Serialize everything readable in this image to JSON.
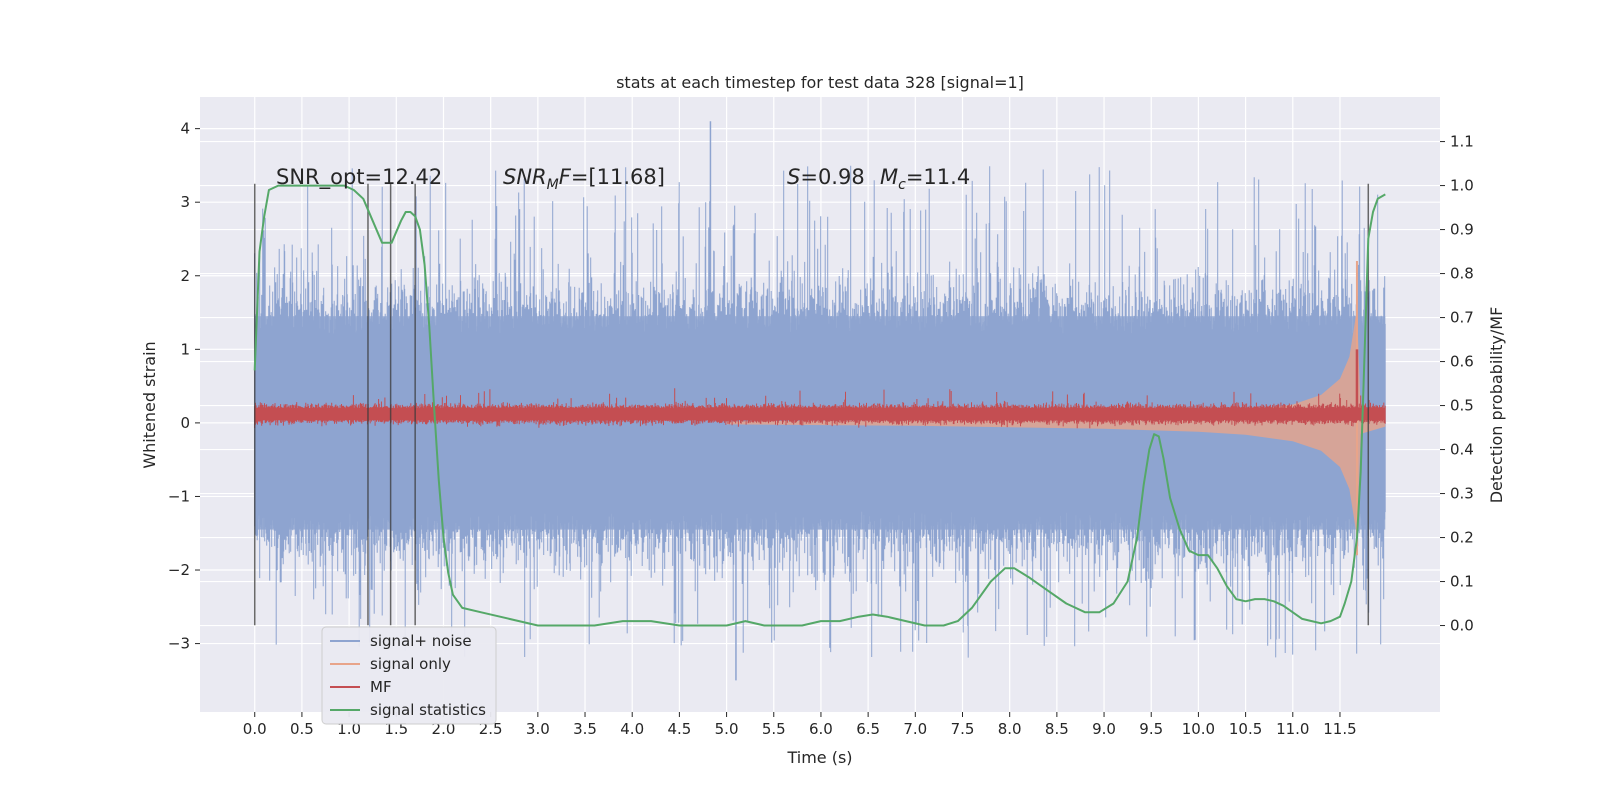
{
  "chart_data": {
    "type": "line",
    "title": "stats at each timestep for test data 328 [signal=1]",
    "xlabel": "Time (s)",
    "ylabel_left": "Whitened strain",
    "ylabel_right": "Detection probability/MF",
    "xlim": [
      -0.58,
      12.56
    ],
    "ylim_left": [
      -3.93,
      4.43
    ],
    "ylim_right": [
      -0.1965,
      1.2013
    ],
    "x_ticks": [
      0.0,
      0.5,
      1.0,
      1.5,
      2.0,
      2.5,
      3.0,
      3.5,
      4.0,
      4.5,
      5.0,
      5.5,
      6.0,
      6.5,
      7.0,
      7.5,
      8.0,
      8.5,
      9.0,
      9.5,
      10.0,
      10.5,
      11.0,
      11.5
    ],
    "x_tick_labels": [
      "0.0",
      "0.5",
      "1.0",
      "1.5",
      "2.0",
      "2.5",
      "3.0",
      "3.5",
      "4.0",
      "4.5",
      "5.0",
      "5.5",
      "6.0",
      "6.5",
      "7.0",
      "7.5",
      "8.0",
      "8.5",
      "9.0",
      "9.5",
      "10.0",
      "10.5",
      "11.0",
      "11.5"
    ],
    "y_left_ticks": [
      -3,
      -2,
      -1,
      0,
      1,
      2,
      3,
      4
    ],
    "y_left_tick_labels": [
      "−3",
      "−2",
      "−1",
      "0",
      "1",
      "2",
      "3",
      "4"
    ],
    "y_right_ticks": [
      0.0,
      0.1,
      0.2,
      0.3,
      0.4,
      0.5,
      0.6,
      0.7,
      0.8,
      0.9,
      1.0,
      1.1
    ],
    "y_right_tick_labels": [
      "0.0",
      "0.1",
      "0.2",
      "0.3",
      "0.4",
      "0.5",
      "0.6",
      "0.7",
      "0.8",
      "0.9",
      "1.0",
      "1.1"
    ],
    "grid": true,
    "legend_position": "lower-left",
    "annotations": {
      "snr_opt": "SNR_opt=12.42",
      "snr_mf_sym": "SNR",
      "snr_mf_sub": "M",
      "snr_mf_rest": "F=[11.68]",
      "s_sym": "S",
      "s_value": "=0.98",
      "mc_sym": "M",
      "mc_sub": "c",
      "mc_value": "=11.4"
    },
    "series": [
      {
        "name": "signal+ noise",
        "color": "#8ea4d0",
        "axis": "left",
        "style": "noise",
        "x_range": [
          0.0,
          11.98
        ],
        "band_sigma": 1.0,
        "max_spike": 4.1,
        "min_spike": -3.5
      },
      {
        "name": "signal only",
        "color": "#e8a48a",
        "axis": "left",
        "style": "chirp",
        "x_range": [
          5.0,
          11.98
        ],
        "envelope": {
          "x": [
            5.0,
            7.0,
            9.0,
            10.0,
            10.5,
            11.0,
            11.3,
            11.5,
            11.6,
            11.68,
            11.72,
            11.98
          ],
          "y": [
            0.02,
            0.04,
            0.08,
            0.12,
            0.16,
            0.25,
            0.38,
            0.6,
            0.9,
            1.55,
            0.15,
            0.05
          ]
        }
      },
      {
        "name": "MF",
        "color": "#c44e52",
        "axis": "left",
        "style": "mf",
        "x_range": [
          0.0,
          11.98
        ],
        "baseline": 0.12,
        "peak_x": 11.68,
        "peak_y": 1.0
      },
      {
        "name": "signal statistics",
        "color": "#55a868",
        "axis": "right",
        "style": "line",
        "x": [
          0.0,
          0.05,
          0.1,
          0.15,
          0.25,
          0.4,
          0.6,
          0.8,
          0.95,
          1.05,
          1.15,
          1.25,
          1.35,
          1.45,
          1.55,
          1.6,
          1.65,
          1.7,
          1.75,
          1.8,
          1.85,
          1.9,
          1.95,
          2.0,
          2.05,
          2.1,
          2.2,
          2.4,
          2.6,
          2.8,
          3.0,
          3.3,
          3.6,
          3.9,
          4.2,
          4.5,
          4.8,
          5.0,
          5.2,
          5.4,
          5.6,
          5.8,
          6.0,
          6.2,
          6.4,
          6.55,
          6.7,
          6.9,
          7.1,
          7.3,
          7.45,
          7.6,
          7.8,
          7.95,
          8.05,
          8.2,
          8.4,
          8.6,
          8.8,
          8.95,
          9.1,
          9.25,
          9.35,
          9.42,
          9.48,
          9.53,
          9.58,
          9.63,
          9.7,
          9.8,
          9.9,
          10.0,
          10.1,
          10.2,
          10.3,
          10.4,
          10.5,
          10.6,
          10.7,
          10.8,
          10.9,
          11.0,
          11.1,
          11.2,
          11.3,
          11.4,
          11.5,
          11.55,
          11.62,
          11.68,
          11.72,
          11.75,
          11.8,
          11.85,
          11.9,
          11.98
        ],
        "y": [
          0.58,
          0.85,
          0.93,
          0.99,
          1.0,
          1.0,
          1.0,
          1.0,
          1.0,
          0.99,
          0.97,
          0.92,
          0.87,
          0.87,
          0.92,
          0.94,
          0.94,
          0.93,
          0.9,
          0.82,
          0.68,
          0.5,
          0.33,
          0.2,
          0.12,
          0.07,
          0.04,
          0.03,
          0.02,
          0.01,
          0.0,
          0.0,
          0.0,
          0.01,
          0.01,
          0.0,
          0.0,
          0.0,
          0.01,
          0.0,
          0.0,
          0.0,
          0.01,
          0.01,
          0.02,
          0.025,
          0.02,
          0.01,
          0.0,
          0.0,
          0.01,
          0.04,
          0.1,
          0.13,
          0.13,
          0.11,
          0.08,
          0.05,
          0.03,
          0.03,
          0.05,
          0.1,
          0.2,
          0.32,
          0.4,
          0.435,
          0.43,
          0.38,
          0.29,
          0.22,
          0.17,
          0.16,
          0.16,
          0.13,
          0.09,
          0.06,
          0.055,
          0.06,
          0.06,
          0.055,
          0.045,
          0.03,
          0.015,
          0.01,
          0.005,
          0.01,
          0.02,
          0.05,
          0.1,
          0.2,
          0.35,
          0.55,
          0.88,
          0.94,
          0.97,
          0.98
        ]
      }
    ],
    "vlines": [
      {
        "x": 0.0,
        "y_left": [
          -2.75,
          3.25
        ]
      },
      {
        "x": 1.2,
        "y_left": [
          -2.75,
          3.25
        ]
      },
      {
        "x": 1.44,
        "y_left": [
          -2.75,
          3.25
        ]
      },
      {
        "x": 1.7,
        "y_left": [
          -2.75,
          3.25
        ]
      },
      {
        "x": 11.8,
        "y_left": [
          -2.75,
          3.25
        ]
      }
    ]
  }
}
